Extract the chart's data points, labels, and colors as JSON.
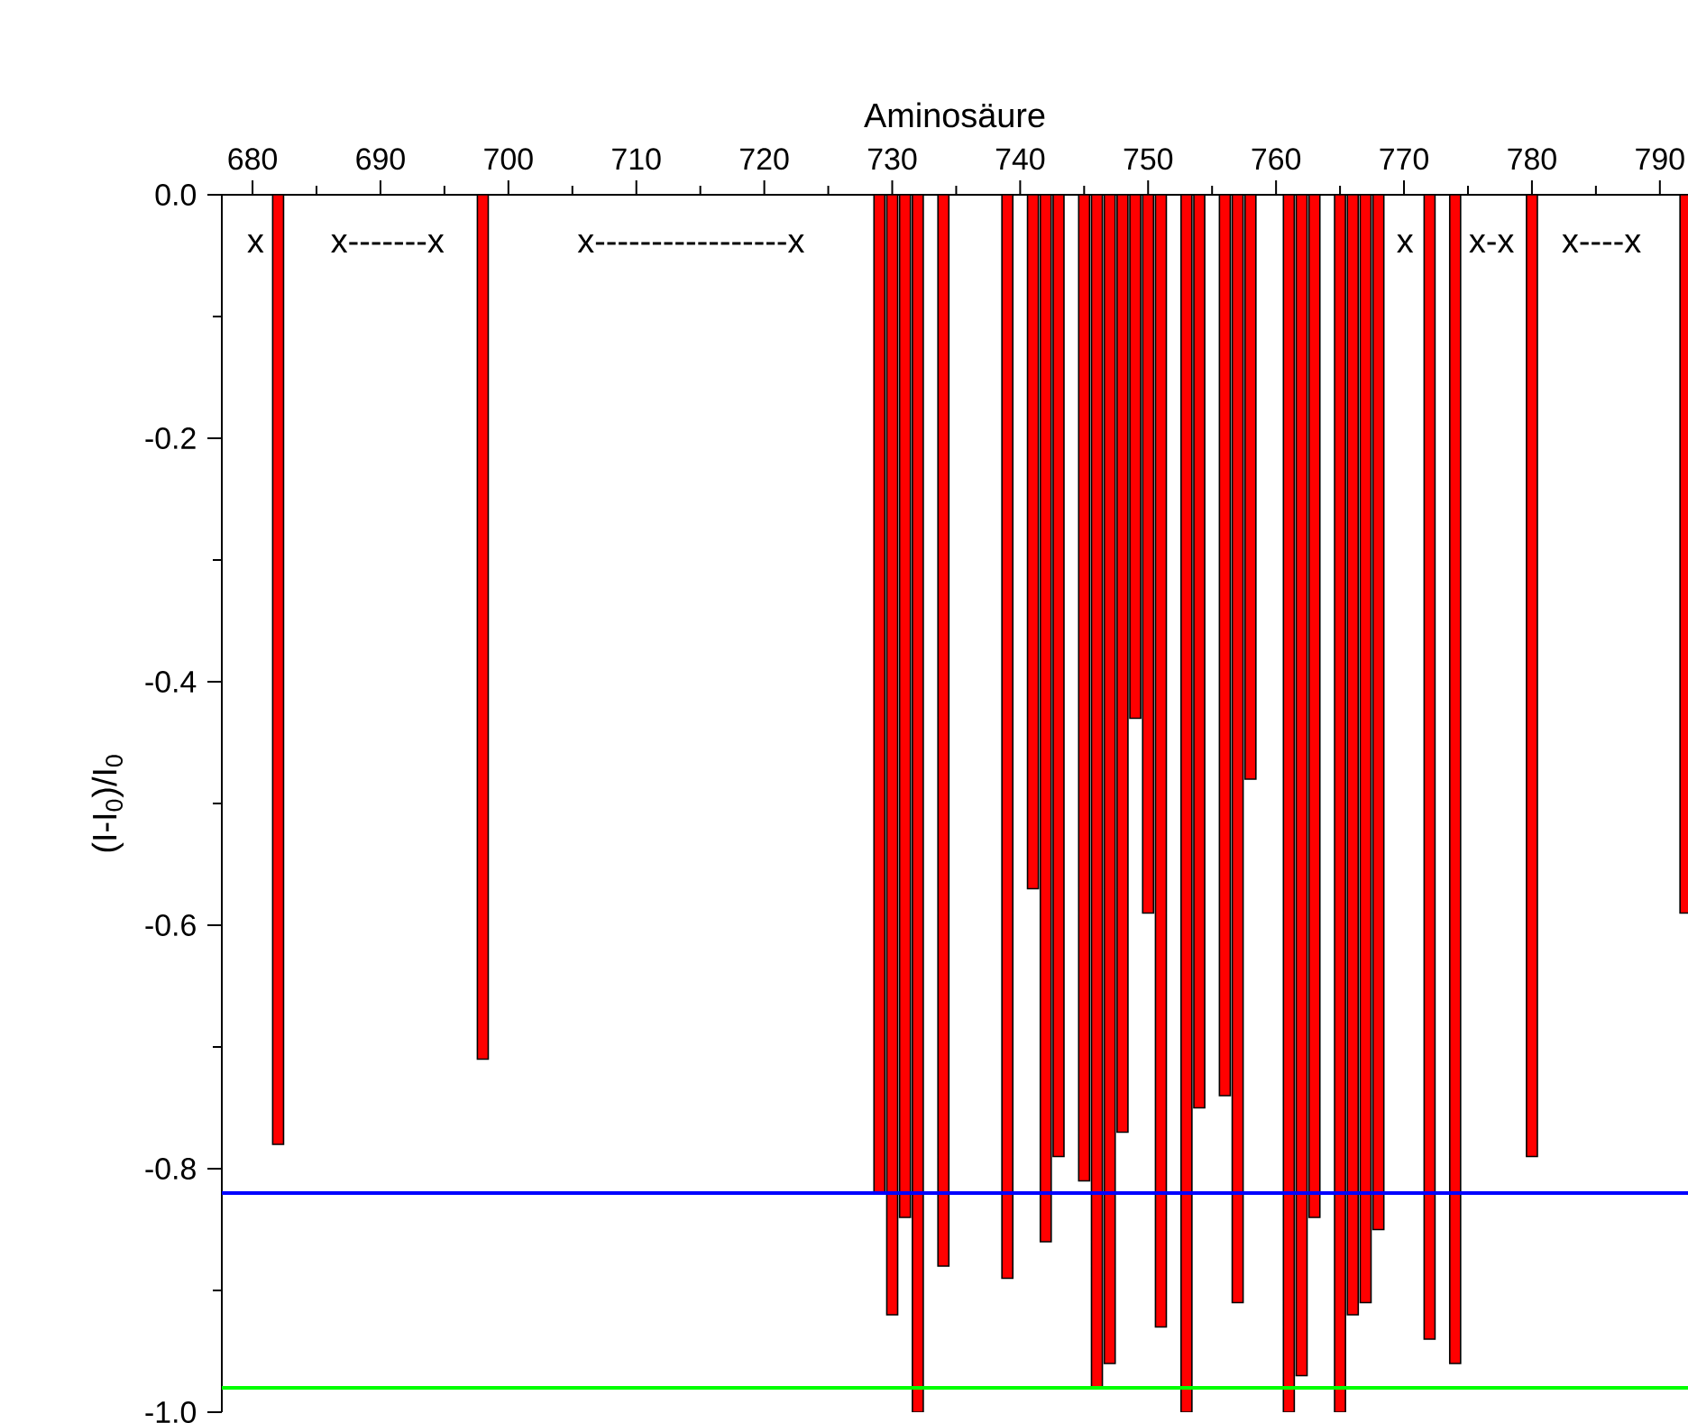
{
  "chart_data": {
    "type": "bar",
    "xlabel": "Aminosäure",
    "ylabel": "(I-I$_{0}$)/I$_{0}$",
    "x": [
      682,
      698,
      729,
      730,
      731,
      732,
      734,
      739,
      741,
      742,
      743,
      745,
      746,
      747,
      748,
      749,
      750,
      751,
      753,
      754,
      756,
      757,
      758,
      761,
      762,
      763,
      765,
      766,
      767,
      768,
      772,
      774,
      780,
      792
    ],
    "values": [
      -0.78,
      -0.71,
      -0.82,
      -0.92,
      -0.84,
      -1.0,
      -0.88,
      -0.89,
      -0.57,
      -0.86,
      -0.79,
      -0.81,
      -0.98,
      -0.96,
      -0.77,
      -0.43,
      -0.59,
      -0.93,
      -1.0,
      -0.75,
      -0.74,
      -0.91,
      -0.48,
      -1.0,
      -0.97,
      -0.84,
      -1.0,
      -0.92,
      -0.91,
      -0.85,
      -0.94,
      -0.96,
      -0.79,
      -0.59
    ],
    "color": "#ff0000",
    "xlim": [
      677.6,
      792.2
    ],
    "xticks": [
      680,
      690,
      700,
      710,
      720,
      730,
      740,
      750,
      760,
      770,
      780,
      790
    ],
    "ylim": [
      -1.0,
      0
    ],
    "yticks": [
      {
        "value": 0,
        "label": "0.0"
      },
      -0.2,
      -0.4,
      -0.6,
      -0.8,
      {
        "value": -1.0,
        "label": "-1.0"
      }
    ],
    "ref_lines": [
      {
        "axis": "y",
        "value": -0.82,
        "color": "#0000ff"
      },
      {
        "axis": "y",
        "value": -0.98,
        "color": "#00ff00"
      }
    ],
    "annotations": [
      "x",
      "x-------x",
      "x-----------------x",
      "x",
      "x-x",
      "x----x"
    ]
  }
}
